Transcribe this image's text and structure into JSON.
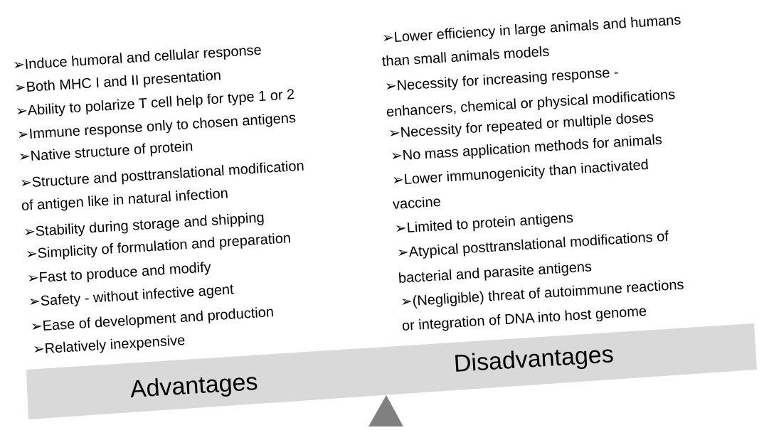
{
  "bullet": "➢",
  "colors": {
    "beam": "#d9d9d9",
    "fulcrum": "#808080"
  },
  "advantages": {
    "label": "Advantages",
    "lines": [
      "➢Induce  humoral and cellular response",
      "➢Both MHC I and II presentation",
      "➢Ability to polarize T cell help for type 1 or 2",
      "➢Immune response  only to chosen antigens",
      "➢Native structure of protein",
      "➢Structure and posttranslational modification",
      "of antigen like in natural infection",
      "➢Stability during storage and shipping",
      "➢Simplicity of formulation and preparation",
      "➢Fast to produce and modify",
      "➢Safety - without infective agent",
      "➢Ease of development and production",
      "➢Relatively inexpensive"
    ]
  },
  "disadvantages": {
    "label": "Disadvantages",
    "lines": [
      "➢Lower efficiency in large animals and humans",
      "than small animals models",
      "➢Necessity for increasing response  -",
      "enhancers,  chemical or physical modifications",
      "➢Necessity for repeated or multiple doses",
      "➢No mass application methods  for animals",
      "➢Lower  immunogenicity than  inactivated",
      "vaccine",
      "➢Limited to protein antigens",
      "➢Atypical posttranslational modifications of",
      "bacterial and parasite antigens",
      "➢(Negligible) threat of autoimmune reactions",
      "or integration of DNA into host genome"
    ]
  }
}
